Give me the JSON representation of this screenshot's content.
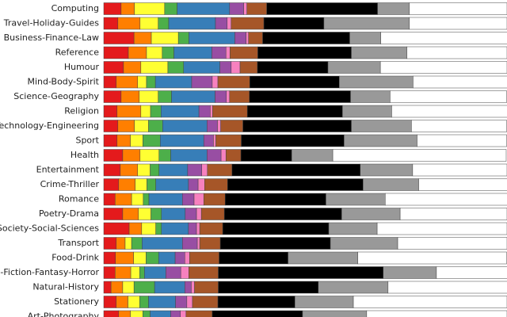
{
  "chart_data": {
    "type": "stacked-bar-horizontal",
    "categories": [
      "Computing",
      "Travel-Holiday-Guides",
      "Business-Finance-Law",
      "Reference",
      "Humour",
      "Mind-Body-Spirit",
      "Science-Geography",
      "Religion",
      "Technology-Engineering",
      "Sport",
      "Health",
      "Entertainment",
      "Crime-Thriller",
      "Romance",
      "Poetry-Drama",
      "Society-Social-Sciences",
      "Transport",
      "Food-Drink",
      "Science-Fiction-Fantasy-Horror",
      "Natural-History",
      "Stationery",
      "Art-Photography"
    ],
    "xlim": [
      0,
      100
    ],
    "series": [
      {
        "color": "#e41a1c",
        "values": [
          4.3,
          3.5,
          7.5,
          6.1,
          4.9,
          3.1,
          4.3,
          3.3,
          3.5,
          3.3,
          4.7,
          4.1,
          3.7,
          2.8,
          4.7,
          6.3,
          3.1,
          2.9,
          2.8,
          1.8,
          3.1,
          3.7
        ]
      },
      {
        "color": "#ff7f00",
        "values": [
          3.3,
          5.5,
          4.3,
          4.5,
          4.3,
          5.3,
          4.5,
          5.9,
          4.1,
          3.3,
          4.3,
          4.3,
          4.1,
          4.1,
          3.9,
          3.1,
          2.2,
          4.5,
          3.9,
          2.9,
          2.9,
          2.9
        ]
      },
      {
        "color": "#ffff33",
        "values": [
          7.5,
          4.5,
          6.7,
          3.9,
          6.7,
          2.2,
          4.7,
          2.4,
          3.5,
          3.1,
          4.7,
          3.1,
          2.9,
          2.9,
          3.1,
          3.5,
          1.6,
          3.1,
          2.2,
          2.8,
          2.9,
          3.1
        ]
      },
      {
        "color": "#4daf4a",
        "values": [
          3.1,
          2.6,
          2.6,
          2.9,
          3.9,
          2.2,
          3.3,
          2.6,
          3.5,
          4.3,
          2.9,
          2.2,
          2.2,
          1.4,
          2.6,
          1.4,
          2.6,
          3.1,
          1.2,
          5.1,
          2.2,
          1.8
        ]
      },
      {
        "color": "#377eb8",
        "values": [
          13,
          11.6,
          11.4,
          9.4,
          9,
          9,
          10.8,
          9.4,
          11,
          10.8,
          9,
          7.1,
          8.1,
          8.3,
          5.9,
          6.7,
          10,
          4.1,
          5.3,
          7.5,
          6.7,
          5.1
        ]
      },
      {
        "color": "#984ea3",
        "values": [
          3.5,
          2.9,
          2.8,
          3.5,
          2.8,
          5.1,
          2.8,
          2.8,
          2.6,
          2.4,
          3.5,
          3.5,
          2.4,
          2.9,
          2.8,
          2,
          3.7,
          2.4,
          3.7,
          1.6,
          2.8,
          2.4
        ]
      },
      {
        "color": "#f781bf",
        "values": [
          0.8,
          1,
          0.6,
          1,
          2.2,
          1.4,
          0.8,
          0.6,
          0.8,
          0.6,
          1.2,
          1.4,
          1.6,
          2.4,
          1.2,
          0.8,
          0.6,
          1.2,
          2,
          0.8,
          1.4,
          1.4
        ]
      },
      {
        "color": "#a65628",
        "values": [
          4.9,
          8.1,
          3.5,
          6.9,
          4.3,
          7.9,
          4.9,
          8.6,
          5.5,
          6.3,
          3.7,
          6.1,
          5.7,
          5.3,
          5.7,
          5.7,
          5.1,
          7.3,
          7.3,
          5.9,
          6.3,
          6.5
        ]
      },
      {
        "color": "#000000",
        "values": [
          27.5,
          14.9,
          21.6,
          23.2,
          17.5,
          22.2,
          25.1,
          23.6,
          26.9,
          25.5,
          12.6,
          31.8,
          33.6,
          25,
          29.1,
          26.3,
          27.3,
          17.1,
          40.9,
          24.8,
          19.1,
          22.4
        ]
      },
      {
        "color": "#999999",
        "values": [
          7.9,
          21.2,
          7.7,
          13.8,
          13,
          18.3,
          9.8,
          12.2,
          14.9,
          18.1,
          10.2,
          13,
          13.8,
          14.7,
          14.5,
          12,
          16.7,
          17.3,
          13.2,
          17.3,
          14.5,
          15.9
        ]
      },
      {
        "color": "#ffffff",
        "values": [
          24.2,
          24.2,
          31.4,
          24.8,
          31.4,
          23.4,
          28.9,
          28.7,
          23.6,
          22.2,
          43,
          23.4,
          22,
          30.3,
          26.5,
          32.2,
          27.1,
          36.9,
          17.7,
          29.7,
          38.1,
          34.8
        ]
      }
    ]
  }
}
